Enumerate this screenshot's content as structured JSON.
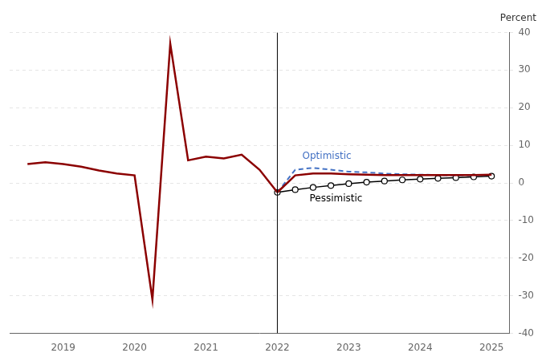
{
  "chart_data": {
    "type": "line",
    "title": "Percent",
    "xlim": [
      2018.25,
      2025.25
    ],
    "xticks": [
      2019,
      2020,
      2021,
      2022,
      2023,
      2024,
      2025
    ],
    "ylim": [
      -40,
      40
    ],
    "yticks": [
      -40,
      -30,
      -20,
      -10,
      0,
      10,
      20,
      30,
      40
    ],
    "grid": "y",
    "series": [
      {
        "color": "#8B0000",
        "line_style": "solid",
        "x": [
          2018.5,
          2018.75,
          2019.0,
          2019.25,
          2019.5,
          2019.75,
          2020.0,
          2020.25,
          2020.5,
          2020.75,
          2021.0,
          2021.25,
          2021.5,
          2021.75,
          2022.0
        ],
        "values": [
          5.0,
          5.5,
          5.0,
          4.3,
          3.3,
          2.5,
          2.0,
          -31.0,
          37.0,
          6.0,
          7.0,
          6.5,
          7.5,
          3.5,
          -2.5
        ]
      },
      {
        "color": "#8B0000",
        "line_style": "solid",
        "x": [
          2022.0,
          2022.25,
          2022.5,
          2022.75,
          2023.0,
          2023.25,
          2023.5,
          2023.75,
          2024.0,
          2024.25,
          2024.5,
          2024.75,
          2025.0
        ],
        "values": [
          -2.5,
          2.0,
          2.5,
          2.5,
          2.3,
          2.2,
          2.1,
          2.1,
          2.1,
          2.1,
          2.1,
          2.1,
          2.2
        ]
      },
      {
        "color": "#4472C4",
        "line_style": "dashed",
        "x": [
          2022.0,
          2022.25,
          2022.5,
          2022.75,
          2023.0,
          2023.25,
          2023.5,
          2023.75,
          2024.0,
          2024.25,
          2024.5,
          2024.75,
          2025.0
        ],
        "values": [
          -2.5,
          3.5,
          4.0,
          3.5,
          3.0,
          2.8,
          2.5,
          2.3,
          2.2,
          2.1,
          2.0,
          2.0,
          2.2
        ]
      },
      {
        "color": "#000000",
        "line_style": "solid",
        "marker": "circle",
        "x": [
          2022.0,
          2022.25,
          2022.5,
          2022.75,
          2023.0,
          2023.25,
          2023.5,
          2023.75,
          2024.0,
          2024.25,
          2024.5,
          2024.75,
          2025.0
        ],
        "values": [
          -2.5,
          -1.8,
          -1.2,
          -0.7,
          -0.2,
          0.2,
          0.5,
          0.8,
          1.0,
          1.2,
          1.4,
          1.6,
          1.8
        ]
      }
    ],
    "annotations": [
      {
        "text": "Optimistic",
        "x": 2022.35,
        "y": 6.5,
        "color": "#4472C4"
      },
      {
        "text": "Pessimistic",
        "x": 2022.45,
        "y": -5.0,
        "color": "#000000"
      }
    ],
    "vlines": [
      {
        "x": 2022.0,
        "color": "#000000"
      }
    ]
  }
}
